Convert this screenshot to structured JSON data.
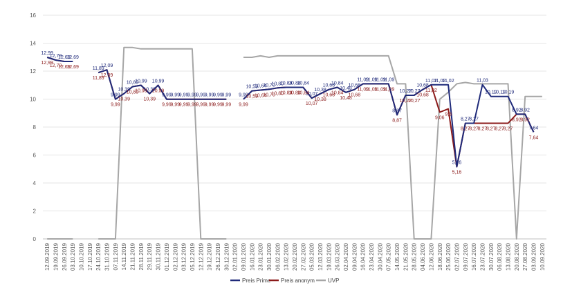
{
  "chart_data": {
    "type": "line",
    "title": "",
    "xlabel": "",
    "ylabel": "",
    "ylim": [
      0,
      16
    ],
    "yticks": [
      "0",
      "2",
      "4",
      "6",
      "8",
      "10",
      "12",
      "14",
      "16"
    ],
    "grid": true,
    "legend_position": "bottom",
    "x": [
      "12.09.2019",
      "19.09.2019",
      "26.09.2019",
      "03.10.2019",
      "10.10.2019",
      "17.10.2019",
      "24.10.2019",
      "31.10.2019",
      "07.11.2019",
      "14.11.2019",
      "21.11.2019",
      "28.11.2019",
      "29.11.2019",
      "30.11.2019",
      "01.12.2019",
      "02.12.2019",
      "03.12.2019",
      "05.12.2019",
      "12.12.2019",
      "19.12.2019",
      "26.12.2019",
      "30.12.2019",
      "02.01.2020",
      "09.01.2020",
      "16.01.2020",
      "23.01.2020",
      "30.01.2020",
      "06.02.2020",
      "13.02.2020",
      "20.02.2020",
      "27.02.2020",
      "05.03.2020",
      "12.03.2020",
      "19.03.2020",
      "26.03.2020",
      "02.04.2020",
      "09.04.2020",
      "16.04.2020",
      "23.04.2020",
      "30.04.2020",
      "07.05.2020",
      "14.05.2020",
      "21.05.2020",
      "28.05.2020",
      "04.06.2020",
      "12.06.2020",
      "18.06.2020",
      "25.06.2020",
      "02.07.2020",
      "09.07.2020",
      "16.07.2020",
      "23.07.2020",
      "30.07.2020",
      "06.08.2020",
      "13.08.2020",
      "20.08.2020",
      "27.08.2020",
      "03.09.2020",
      "10.09.2020"
    ],
    "series": [
      {
        "name": "Preis Prime",
        "color": "#1f2a7a",
        "values": [
          12.99,
          12.79,
          12.69,
          12.69,
          null,
          null,
          11.89,
          12.09,
          9.99,
          10.39,
          10.89,
          10.99,
          10.39,
          10.99,
          9.99,
          9.99,
          9.99,
          9.99,
          9.99,
          9.99,
          9.99,
          9.99,
          null,
          9.99,
          10.59,
          10.64,
          10.7,
          10.8,
          10.84,
          10.84,
          10.84,
          10.07,
          10.38,
          10.68,
          10.84,
          10.48,
          10.68,
          11.09,
          11.09,
          11.09,
          11.09,
          8.87,
          10.27,
          10.27,
          10.68,
          11.02,
          11.02,
          11.02,
          5.16,
          8.27,
          8.27,
          11.03,
          10.19,
          10.19,
          10.19,
          8.92,
          8.92,
          7.64,
          null
        ],
        "labels": [
          "12,99",
          "12,79",
          "12,69",
          "12,69",
          null,
          null,
          "11,89",
          "12,09",
          "9,99",
          "10,39",
          "10,89",
          "10,99",
          "10,39",
          "10,99",
          "9,99",
          "9,99",
          "9,99",
          "9,99",
          "9,99",
          "9,99",
          "9,99",
          "9,99",
          null,
          "9,99",
          "10,59",
          "10,64",
          "10,70",
          "10,80",
          "10,84",
          "10,84",
          "10,84",
          "10,07",
          "10,38",
          "10,68",
          "10,84",
          "10,48",
          "10,68",
          "11,09",
          "11,09",
          "11,09",
          "11,09",
          "8,87",
          "10,27",
          "10,27",
          "10,68",
          "11,02",
          "11,02",
          "11,02",
          "5,16",
          "8,27",
          "8,27",
          "11,03",
          "10,19",
          "10,19",
          "10,19",
          "8,92",
          "8,92",
          "7,64",
          null
        ]
      },
      {
        "name": "Preis anonym",
        "color": "#8b1a1a",
        "values": [
          12.99,
          12.79,
          12.69,
          12.69,
          null,
          null,
          11.89,
          12.09,
          9.99,
          10.39,
          10.89,
          10.99,
          10.39,
          10.99,
          9.99,
          9.99,
          9.99,
          9.99,
          9.99,
          9.99,
          9.99,
          9.99,
          null,
          9.99,
          10.59,
          10.64,
          10.7,
          10.8,
          10.84,
          10.84,
          10.84,
          10.07,
          10.38,
          10.68,
          10.84,
          10.48,
          10.68,
          11.09,
          11.09,
          11.09,
          11.09,
          8.87,
          10.27,
          10.27,
          10.68,
          11.02,
          9.06,
          9.3,
          5.16,
          8.27,
          8.27,
          8.27,
          8.27,
          8.27,
          8.27,
          8.92,
          8.92,
          7.64,
          null
        ],
        "labels": [
          "12,99",
          "12,79",
          "12,69",
          "12,69",
          null,
          null,
          "11,89",
          "12,09",
          "9,99",
          "10,39",
          "10,89",
          "10,99",
          "10,39",
          "10,99",
          "9,99",
          "9,99",
          "9,99",
          "9,99",
          "9,99",
          "9,99",
          "9,99",
          "9,99",
          null,
          "9,99",
          "10,59",
          "10,64",
          "10,70",
          "10,80",
          "10,84",
          "10,84",
          "10,84",
          "10,07",
          "10,38",
          "10,68",
          "10,84",
          "10,48",
          "10,68",
          "11,09",
          "11,09",
          "11,09",
          "11,09",
          "8,87",
          "10,27",
          "10,27",
          "10,68",
          "11,02",
          "9,06",
          "9,3",
          "5,16",
          "8,27",
          "8,27",
          "8,27",
          "8,27",
          "8,27",
          "8,27",
          "8,92",
          "8,92",
          "7,64",
          null
        ]
      },
      {
        "name": "UVP",
        "color": "#a6a6a6",
        "values": [
          0,
          0,
          0,
          0,
          null,
          null,
          0,
          0,
          0,
          13.69,
          13.69,
          13.59,
          13.59,
          13.59,
          13.59,
          13.59,
          13.59,
          13.59,
          0,
          0,
          0,
          0,
          null,
          12.99,
          12.99,
          13.09,
          12.99,
          13.09,
          13.09,
          13.09,
          13.09,
          13.09,
          13.09,
          13.09,
          13.09,
          13.09,
          13.09,
          13.09,
          13.09,
          13.09,
          13.09,
          11.09,
          11.09,
          0,
          0,
          0,
          9.99,
          10.49,
          11.09,
          11.19,
          11.09,
          11.09,
          11.09,
          11.09,
          11.09,
          0,
          10.19,
          10.19,
          10.19
        ]
      }
    ]
  }
}
